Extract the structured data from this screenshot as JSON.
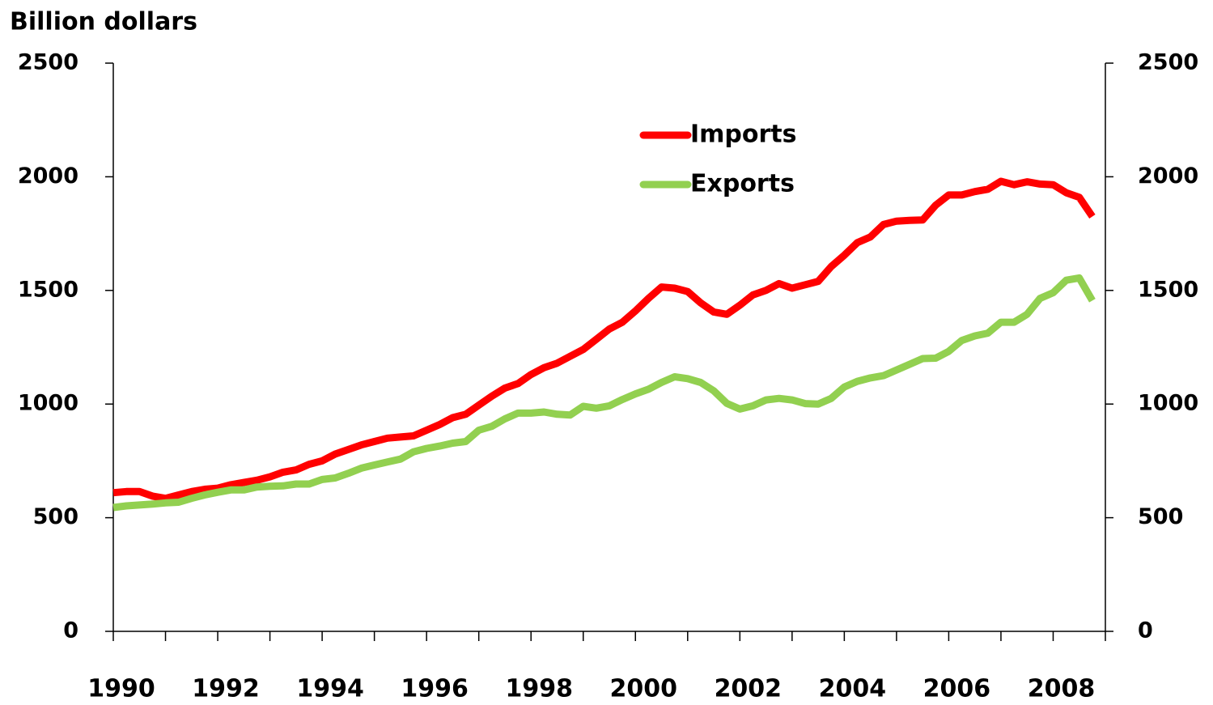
{
  "chart_data": {
    "type": "line",
    "y_label": "Billion dollars",
    "x": [
      1990,
      1990.25,
      1990.5,
      1990.75,
      1991,
      1991.25,
      1991.5,
      1991.75,
      1992,
      1992.25,
      1992.5,
      1992.75,
      1993,
      1993.25,
      1993.5,
      1993.75,
      1994,
      1994.25,
      1994.5,
      1994.75,
      1995,
      1995.25,
      1995.5,
      1995.75,
      1996,
      1996.25,
      1996.5,
      1996.75,
      1997,
      1997.25,
      1997.5,
      1997.75,
      1998,
      1998.25,
      1998.5,
      1998.75,
      1999,
      1999.25,
      1999.5,
      1999.75,
      2000,
      2000.25,
      2000.5,
      2000.75,
      2001,
      2001.25,
      2001.5,
      2001.75,
      2002,
      2002.25,
      2002.5,
      2002.75,
      2003,
      2003.25,
      2003.5,
      2003.75,
      2004,
      2004.25,
      2004.5,
      2004.75,
      2005,
      2005.25,
      2005.5,
      2005.75,
      2006,
      2006.25,
      2006.5,
      2006.75,
      2007,
      2007.25,
      2007.5,
      2007.75,
      2008,
      2008.25,
      2008.5,
      2008.75
    ],
    "series": [
      {
        "name": "Imports",
        "color": "#ff0000",
        "values": [
          610,
          615,
          615,
          595,
          585,
          600,
          615,
          625,
          630,
          645,
          655,
          665,
          680,
          700,
          710,
          735,
          750,
          780,
          800,
          820,
          835,
          850,
          855,
          860,
          885,
          910,
          940,
          955,
          995,
          1035,
          1070,
          1090,
          1130,
          1160,
          1180,
          1210,
          1240,
          1285,
          1330,
          1360,
          1410,
          1465,
          1515,
          1510,
          1495,
          1445,
          1405,
          1395,
          1435,
          1480,
          1500,
          1530,
          1510,
          1525,
          1540,
          1605,
          1655,
          1710,
          1735,
          1790,
          1805,
          1808,
          1810,
          1875,
          1920,
          1920,
          1935,
          1945,
          1980,
          1965,
          1978,
          1968,
          1965,
          1930,
          1910,
          1825
        ]
      },
      {
        "name": "Exports",
        "color": "#92d050",
        "values": [
          545,
          552,
          556,
          560,
          565,
          568,
          585,
          600,
          612,
          622,
          622,
          635,
          638,
          640,
          648,
          648,
          668,
          675,
          695,
          718,
          732,
          745,
          758,
          790,
          805,
          815,
          828,
          835,
          885,
          902,
          935,
          960,
          960,
          965,
          955,
          952,
          990,
          982,
          992,
          1020,
          1045,
          1065,
          1095,
          1120,
          1112,
          1095,
          1058,
          1003,
          978,
          992,
          1018,
          1025,
          1018,
          1002,
          1000,
          1025,
          1075,
          1100,
          1115,
          1125,
          1150,
          1175,
          1200,
          1202,
          1232,
          1280,
          1300,
          1312,
          1360,
          1360,
          1395,
          1465,
          1490,
          1545,
          1555,
          1455
        ]
      }
    ],
    "xlim": [
      1990,
      2009
    ],
    "xticks": [
      1990,
      1992,
      1994,
      1996,
      1998,
      2000,
      2002,
      2004,
      2006,
      2008
    ],
    "xminor_ticks": [
      1991,
      1993,
      1995,
      1997,
      1999,
      2001,
      2003,
      2005,
      2007,
      2009
    ],
    "ylim": [
      0,
      2500
    ],
    "yticks": [
      0,
      500,
      1000,
      1500,
      2000,
      2500
    ],
    "y2lim": [
      0,
      2500
    ],
    "y2ticks": [
      0,
      500,
      1000,
      1500,
      2000,
      2500
    ],
    "grid": false,
    "legend": "upper center"
  }
}
